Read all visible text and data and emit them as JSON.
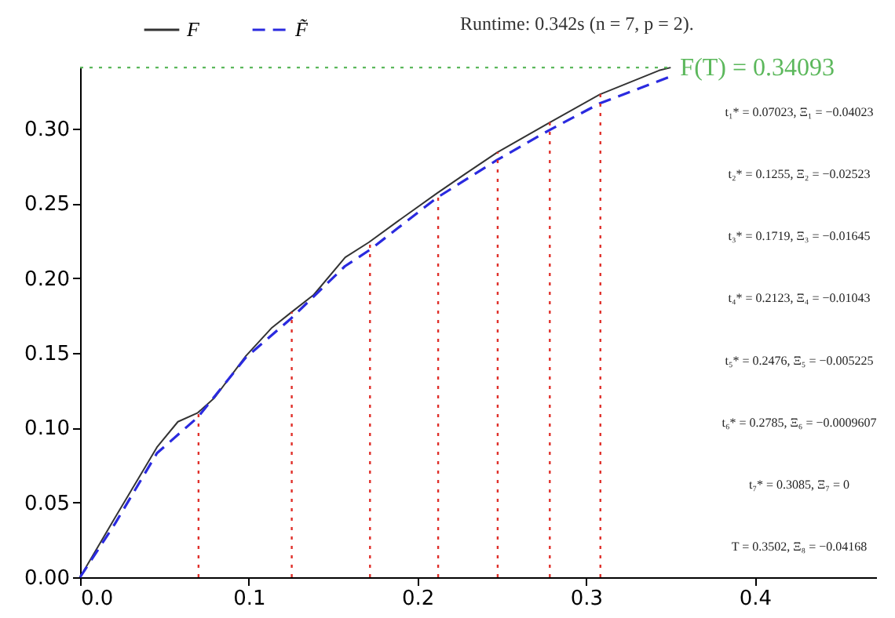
{
  "chart_data": {
    "type": "line",
    "title": "Runtime: 0.342s      (n = 7, p = 2).",
    "series": [
      {
        "name": "F",
        "color": "#333333",
        "line_style": "solid",
        "x": [
          0,
          0.0208,
          0.0456,
          0.058,
          0.0698,
          0.0797,
          0.0983,
          0.1138,
          0.125,
          0.1386,
          0.1572,
          0.1712,
          0.1882,
          0.2118,
          0.2286,
          0.2471,
          0.2781,
          0.3082,
          0.3433,
          0.3502
        ],
        "values": [
          0,
          0.04,
          0.087,
          0.104,
          0.11,
          0.12,
          0.148,
          0.167,
          0.177,
          0.189,
          0.214,
          0.224,
          0.238,
          0.257,
          0.27,
          0.284,
          0.304,
          0.323,
          0.339,
          0.34093
        ]
      },
      {
        "name": "F̃",
        "color": "#2a2adf",
        "line_style": "dashed",
        "x": [
          0,
          0.0208,
          0.0456,
          0.0698,
          0.0983,
          0.125,
          0.157,
          0.1718,
          0.2118,
          0.2471,
          0.2781,
          0.3082,
          0.3502
        ],
        "values": [
          0,
          0.036,
          0.083,
          0.107,
          0.147,
          0.173,
          0.208,
          0.219,
          0.254,
          0.279,
          0.299,
          0.317,
          0.335
        ]
      }
    ],
    "xlim": [
      0,
      0.472
    ],
    "ylim": [
      0,
      0.341
    ],
    "xticks": [
      {
        "value": 0,
        "label": "0.0"
      },
      {
        "value": 0.1,
        "label": "0.1"
      },
      {
        "value": 0.2,
        "label": "0.2"
      },
      {
        "value": 0.3,
        "label": "0.3"
      },
      {
        "value": 0.4,
        "label": "0.4"
      }
    ],
    "yticks": [
      {
        "value": 0,
        "label": "0.00"
      },
      {
        "value": 0.05,
        "label": "0.05"
      },
      {
        "value": 0.1,
        "label": "0.10"
      },
      {
        "value": 0.15,
        "label": "0.15"
      },
      {
        "value": 0.2,
        "label": "0.20"
      },
      {
        "value": 0.25,
        "label": "0.25"
      },
      {
        "value": 0.3,
        "label": "0.30"
      }
    ],
    "ref_lines": [
      {
        "axis": "y",
        "value": 0.34093,
        "label": "F(T) = 0.34093",
        "color": "#5cb85c",
        "line_style": "dotted"
      },
      {
        "axis": "x",
        "value": 0.07023,
        "color": "#e0302a",
        "line_style": "dotted"
      },
      {
        "axis": "x",
        "value": 0.1255,
        "color": "#e0302a",
        "line_style": "dotted"
      },
      {
        "axis": "x",
        "value": 0.1719,
        "color": "#e0302a",
        "line_style": "dotted"
      },
      {
        "axis": "x",
        "value": 0.2123,
        "color": "#e0302a",
        "line_style": "dotted"
      },
      {
        "axis": "x",
        "value": 0.2476,
        "color": "#e0302a",
        "line_style": "dotted"
      },
      {
        "axis": "x",
        "value": 0.2785,
        "color": "#e0302a",
        "line_style": "dotted"
      },
      {
        "axis": "x",
        "value": 0.3085,
        "color": "#e0302a",
        "line_style": "dotted"
      }
    ],
    "annotations": [
      "t₁* = 0.07023,  Ξ₁ = −0.04023",
      "t₂* = 0.1255,  Ξ₂ = −0.02523",
      "t₃* = 0.1719,  Ξ₃ = −0.01645",
      "t₄* = 0.2123,  Ξ₄ = −0.01043",
      "t₅* = 0.2476,  Ξ₅ = −0.005225",
      "t₆* = 0.2785,  Ξ₆ = −0.0009607",
      "t₇* = 0.3085,  Ξ₇ = 0",
      "T = 0.3502,  Ξ₈ = −0.04168"
    ],
    "legend": "top",
    "grid": false,
    "marker": "none"
  }
}
